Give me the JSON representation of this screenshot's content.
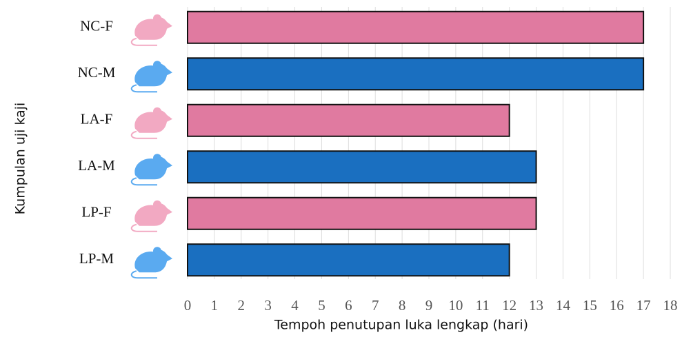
{
  "chart_data": {
    "type": "barh",
    "xlabel": "Tempoh penutupan luka lengkap (hari)",
    "ylabel": "Kumpulan uji kaji",
    "categories": [
      "NC-F",
      "NC-M",
      "LA-F",
      "LA-M",
      "LP-F",
      "LP-M"
    ],
    "values": [
      17,
      17,
      12,
      13,
      13,
      12
    ],
    "colors": [
      "#e07aa0",
      "#1a6fc0",
      "#e07aa0",
      "#1a6fc0",
      "#e07aa0",
      "#1a6fc0"
    ],
    "xlim": [
      0,
      18
    ],
    "xticks": [
      0,
      1,
      2,
      3,
      4,
      5,
      6,
      7,
      8,
      9,
      10,
      11,
      12,
      13,
      14,
      15,
      16,
      17,
      18
    ],
    "grid": true
  }
}
